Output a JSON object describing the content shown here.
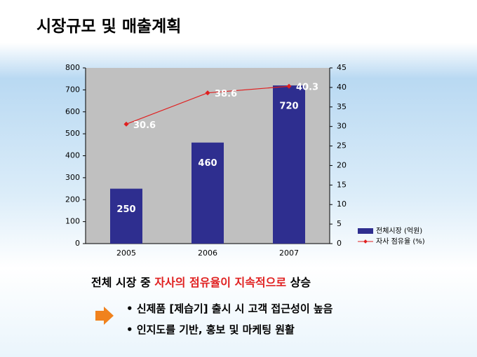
{
  "header": {
    "title": "시장규모 및 매출계획"
  },
  "chart_data": {
    "type": "bar",
    "categories": [
      "2005",
      "2006",
      "2007"
    ],
    "series": [
      {
        "name": "전체시장 (억원)",
        "color": "#2e2e8f",
        "values": [
          250,
          460,
          720
        ]
      },
      {
        "name": "자사 점유율 (%)",
        "color": "#e02020",
        "values": [
          30.6,
          38.6,
          40.3
        ],
        "axis": "y2",
        "type": "line"
      }
    ],
    "ylim": [
      0,
      800
    ],
    "yticks": [
      0,
      100,
      200,
      300,
      400,
      500,
      600,
      700,
      800
    ],
    "y2lim": [
      0,
      45
    ],
    "y2ticks": [
      0,
      5,
      10,
      15,
      20,
      25,
      30,
      35,
      40,
      45
    ],
    "legend": "right",
    "plot_color": "#c0c0c0"
  },
  "summary": {
    "parts": [
      "전체 시장 중 ",
      "자사의 점유율이 지속적으로",
      " 상승"
    ]
  },
  "bullets": [
    "신제품 [제습기] 출시 시 고객 접근성이 높음",
    "인지도를 기반, 홍보 및 마케팅 원활"
  ]
}
